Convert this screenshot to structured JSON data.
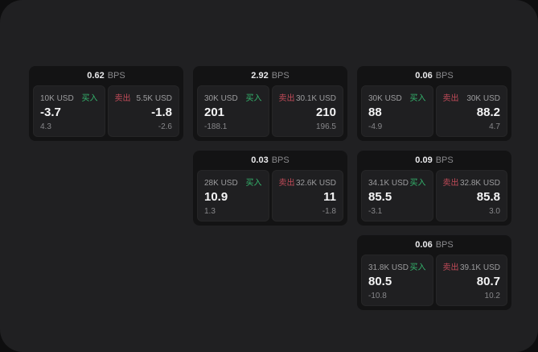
{
  "accent_colors": {
    "buy_green": "#34b56d",
    "sell_red": "#c14b59",
    "surface": "#202022",
    "card_bg": "#131314",
    "panel_bg": "#1f1f21"
  },
  "cards": [
    {
      "grid": {
        "col": 1,
        "row": 1
      },
      "bps_value": "0.62",
      "bps_unit": "BPS",
      "buy": {
        "size": "10K USD",
        "side_label": "买入",
        "price": "-3.7",
        "delta": "4.3"
      },
      "sell": {
        "side_label": "卖出",
        "size": "5.5K USD",
        "price": "-1.8",
        "delta": "-2.6"
      }
    },
    {
      "grid": {
        "col": 2,
        "row": 1
      },
      "bps_value": "2.92",
      "bps_unit": "BPS",
      "buy": {
        "size": "30K USD",
        "side_label": "买入",
        "price": "201",
        "delta": "-188.1"
      },
      "sell": {
        "side_label": "卖出",
        "size": "30.1K USD",
        "price": "210",
        "delta": "196.5"
      }
    },
    {
      "grid": {
        "col": 3,
        "row": 1
      },
      "bps_value": "0.06",
      "bps_unit": "BPS",
      "buy": {
        "size": "30K USD",
        "side_label": "买入",
        "price": "88",
        "delta": "-4.9"
      },
      "sell": {
        "side_label": "卖出",
        "size": "30K USD",
        "price": "88.2",
        "delta": "4.7"
      }
    },
    {
      "grid": {
        "col": 2,
        "row": 2
      },
      "bps_value": "0.03",
      "bps_unit": "BPS",
      "buy": {
        "size": "28K USD",
        "side_label": "买入",
        "price": "10.9",
        "delta": "1.3"
      },
      "sell": {
        "side_label": "卖出",
        "size": "32.6K USD",
        "price": "11",
        "delta": "-1.8"
      }
    },
    {
      "grid": {
        "col": 3,
        "row": 2
      },
      "bps_value": "0.09",
      "bps_unit": "BPS",
      "buy": {
        "size": "34.1K USD",
        "side_label": "买入",
        "price": "85.5",
        "delta": "-3.1"
      },
      "sell": {
        "side_label": "卖出",
        "size": "32.8K USD",
        "price": "85.8",
        "delta": "3.0"
      }
    },
    {
      "grid": {
        "col": 3,
        "row": 3
      },
      "bps_value": "0.06",
      "bps_unit": "BPS",
      "buy": {
        "size": "31.8K USD",
        "side_label": "买入",
        "price": "80.5",
        "delta": "-10.8"
      },
      "sell": {
        "side_label": "卖出",
        "size": "39.1K USD",
        "price": "80.7",
        "delta": "10.2"
      }
    }
  ]
}
